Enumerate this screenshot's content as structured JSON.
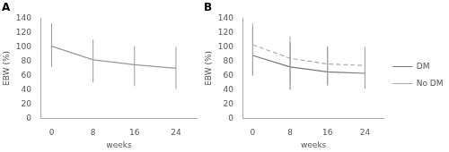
{
  "chart_data": [
    {
      "type": "line",
      "title": "A",
      "xlabel": "weeks",
      "ylabel": "EBW (%)",
      "x": [
        0,
        8,
        16,
        24
      ],
      "series": [
        {
          "color": "#999999",
          "line_style": "solid",
          "values": [
            101,
            82,
            75,
            70
          ],
          "error_upper": [
            133,
            110,
            101,
            100
          ],
          "error_lower": [
            72,
            50,
            45,
            41
          ]
        }
      ],
      "xlim": [
        -2,
        28
      ],
      "xticks": [
        0,
        8,
        16,
        24
      ],
      "ylim": [
        0,
        140
      ],
      "yticks": [
        0,
        20,
        40,
        60,
        80,
        100,
        120,
        140
      ],
      "grid": false
    },
    {
      "type": "line",
      "title": "B",
      "xlabel": "weeks",
      "ylabel": "EBW (%)",
      "x": [
        0,
        8,
        16,
        24
      ],
      "series": [
        {
          "name": "DM",
          "color": "#777777",
          "line_style": "solid",
          "values": [
            88,
            72,
            65,
            63
          ],
          "error_upper": [
            128,
            107,
            100,
            97
          ],
          "error_lower": [
            60,
            40,
            46,
            42
          ]
        },
        {
          "name": "No DM",
          "color": "#aaaaaa",
          "line_style": "dashed",
          "values": [
            103,
            84,
            76,
            74
          ],
          "error_upper": [
            133,
            115,
            101,
            100
          ],
          "error_lower": [
            62,
            50,
            47,
            44
          ]
        }
      ],
      "xlim": [
        -2,
        28
      ],
      "xticks": [
        0,
        8,
        16,
        24
      ],
      "ylim": [
        0,
        140
      ],
      "yticks": [
        0,
        20,
        40,
        60,
        80,
        100,
        120,
        140
      ],
      "grid": false,
      "legend": "right"
    }
  ]
}
